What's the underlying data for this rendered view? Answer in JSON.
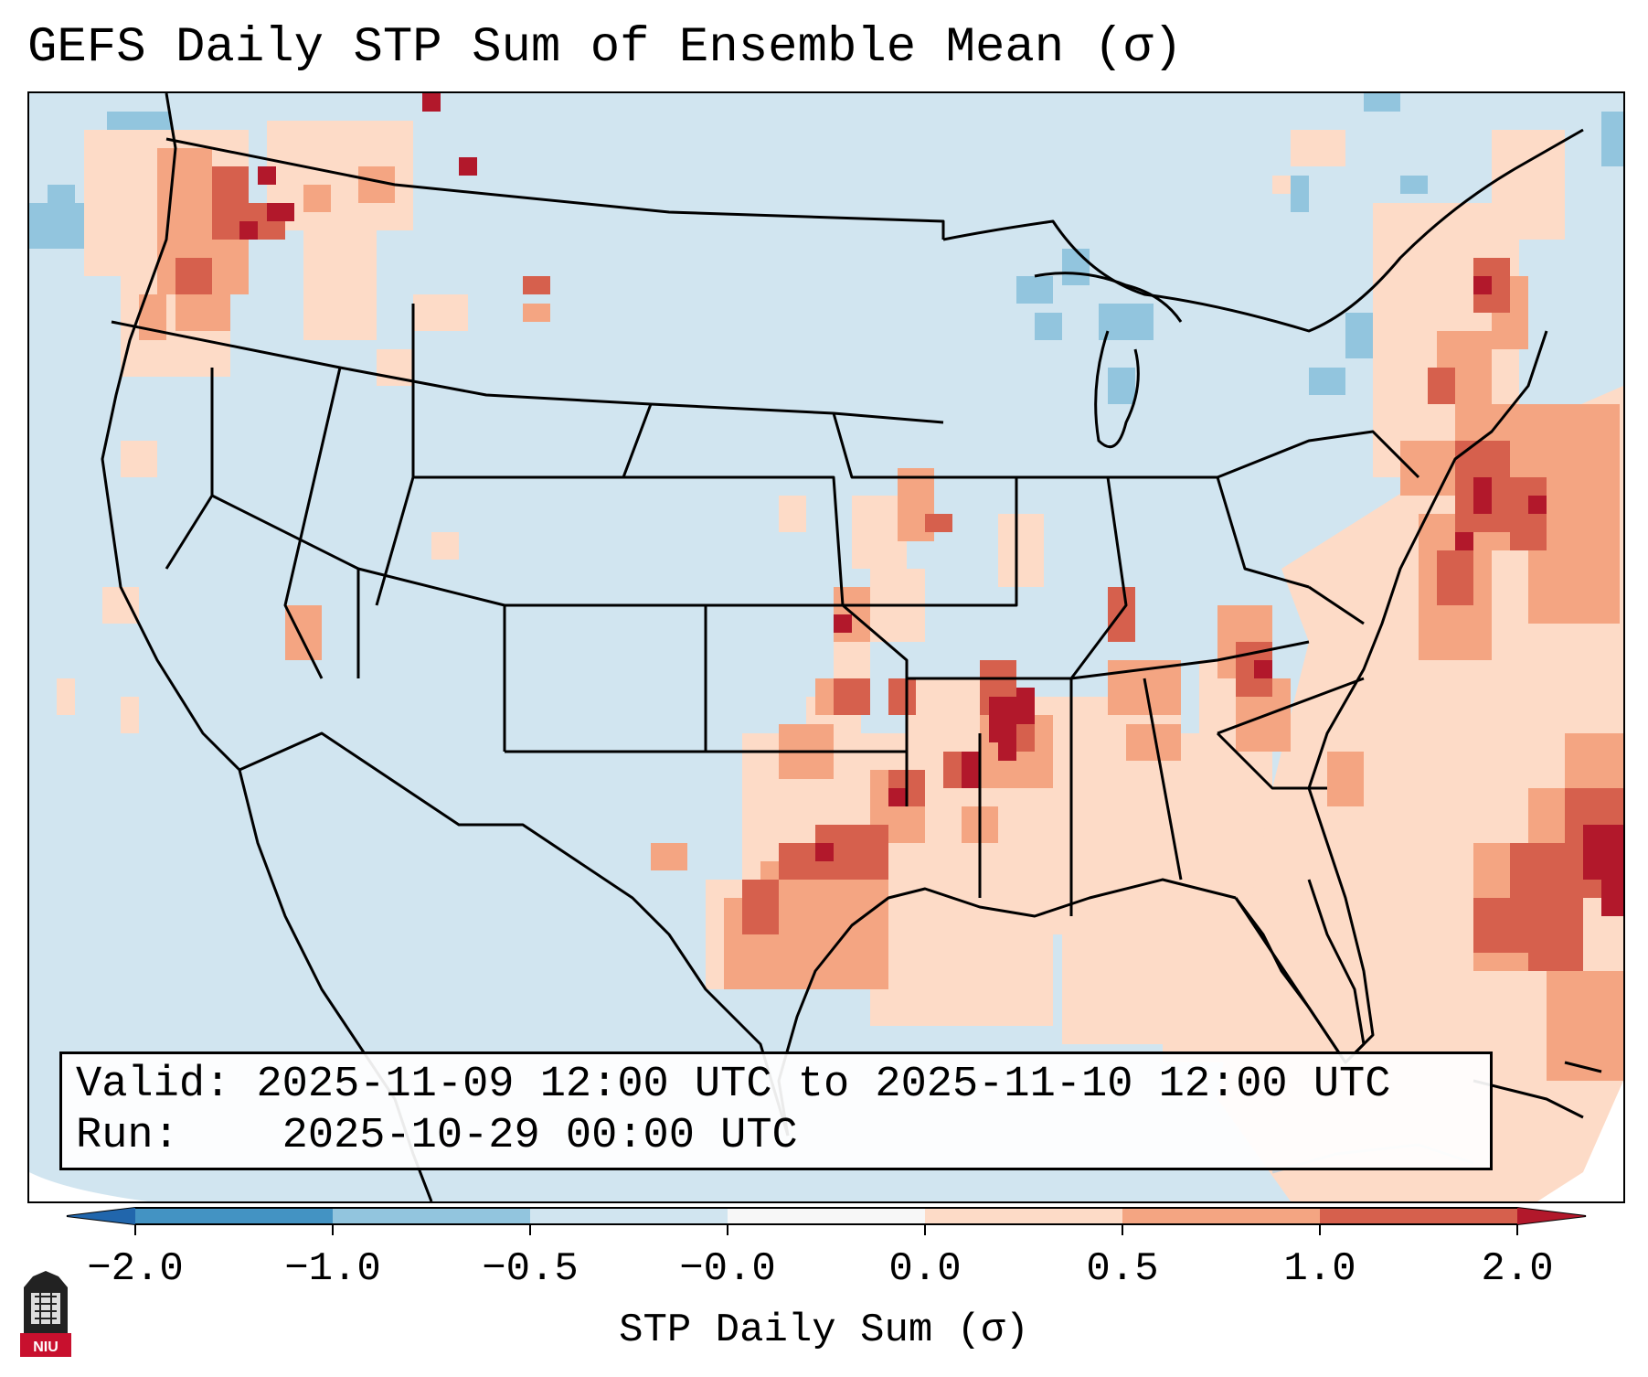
{
  "title": "GEFS Daily STP Sum of Ensemble Mean (σ)",
  "info": {
    "valid_label": "Valid:",
    "valid_value": "2025-11-09 12:00 UTC to 2025-11-10 12:00 UTC",
    "run_label": "Run:",
    "run_value": "2025-10-29 00:00 UTC"
  },
  "colorbar": {
    "label": "STP Daily Sum (σ)",
    "ticks": [
      "−2.0",
      "−1.0",
      "−0.5",
      "−0.0",
      "0.0",
      "0.5",
      "1.0",
      "2.0"
    ],
    "bins": [
      {
        "from": "-2.0",
        "to": "-1.0",
        "color": "#4393c3"
      },
      {
        "from": "-1.0",
        "to": "-0.5",
        "color": "#92c5de"
      },
      {
        "from": "-0.5",
        "to": "-0.0",
        "color": "#d1e5f0"
      },
      {
        "from": "-0.0",
        "to": "0.0",
        "color": "#f7f7f7"
      },
      {
        "from": "0.0",
        "to": "0.5",
        "color": "#fddbc7"
      },
      {
        "from": "0.5",
        "to": "1.0",
        "color": "#f4a582"
      },
      {
        "from": "1.0",
        "to": "2.0",
        "color": "#d6604d"
      }
    ],
    "under_color": "#2166ac",
    "over_color": "#b2182b"
  },
  "legend_logo": "NIU",
  "colors": {
    "background_field": "#d1e5f0",
    "slight_positive": "#fddbc7",
    "moderate_positive": "#f4a582",
    "strong_positive": "#d6604d",
    "extreme_positive": "#b2182b",
    "moderate_negative": "#92c5de",
    "borders": "#000000"
  }
}
